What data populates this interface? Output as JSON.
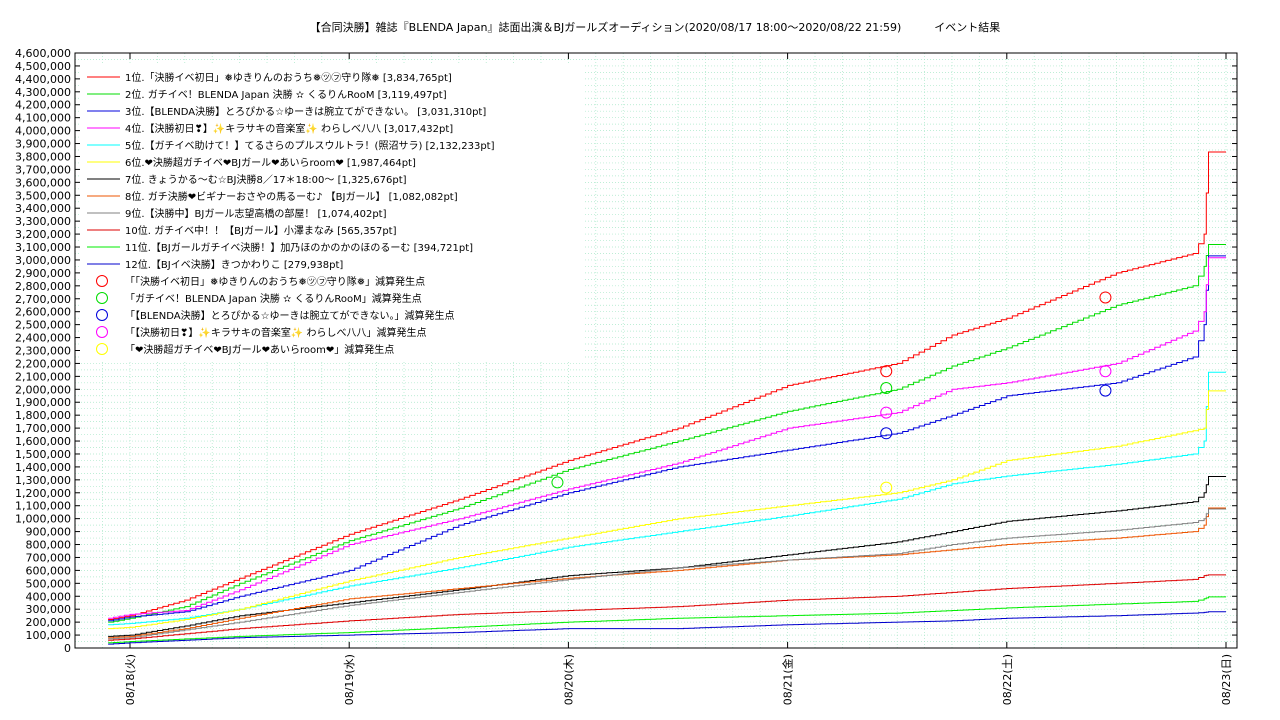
{
  "chart_data": {
    "type": "line",
    "title": "【合同決勝】雑誌『BLENDA Japan』誌面出演＆BJガールズオーディション(2020/08/17 18:00〜2020/08/22 21:59)　　　イベント結果",
    "x_tick_labels": [
      "08/18(火)",
      "08/19(水)",
      "08/20(木)",
      "08/21(金)",
      "08/22(土)",
      "08/23(日)"
    ],
    "x_range_days": [
      0,
      5
    ],
    "ylim": [
      0,
      4600000
    ],
    "y_tick_labels": [
      "0",
      "100,000",
      "200,000",
      "300,000",
      "400,000",
      "500,000",
      "600,000",
      "700,000",
      "800,000",
      "900,000",
      "1,000,000",
      "1,100,000",
      "1,200,000",
      "1,300,000",
      "1,400,000",
      "1,500,000",
      "1,600,000",
      "1,700,000",
      "1,800,000",
      "1,900,000",
      "2,000,000",
      "2,100,000",
      "2,200,000",
      "2,300,000",
      "2,400,000",
      "2,500,000",
      "2,600,000",
      "2,700,000",
      "2,800,000",
      "2,900,000",
      "3,000,000",
      "3,100,000",
      "3,200,000",
      "3,300,000",
      "3,400,000",
      "3,500,000",
      "3,600,000",
      "3,700,000",
      "3,800,000",
      "3,900,000",
      "4,000,000",
      "4,100,000",
      "4,200,000",
      "4,300,000",
      "4,400,000",
      "4,500,000",
      "4,600,000"
    ],
    "y_tick_values": [
      0,
      100000,
      200000,
      300000,
      400000,
      500000,
      600000,
      700000,
      800000,
      900000,
      1000000,
      1100000,
      1200000,
      1300000,
      1400000,
      1500000,
      1600000,
      1700000,
      1800000,
      1900000,
      2000000,
      2100000,
      2200000,
      2300000,
      2400000,
      2500000,
      2600000,
      2700000,
      2800000,
      2900000,
      3000000,
      3100000,
      3200000,
      3300000,
      3400000,
      3500000,
      3600000,
      3700000,
      3800000,
      3900000,
      4000000,
      4100000,
      4200000,
      4300000,
      4400000,
      4500000,
      4600000
    ],
    "grid": true,
    "legend_position": "top-left",
    "series": [
      {
        "name": "1位.「決勝イベ初日」❅ゆきりんのおうち❅㋡㋫守り隊❅ [3,834,765pt]",
        "color": "#ff0000",
        "points": [
          [
            -0.1,
            220000
          ],
          [
            0.0,
            250000
          ],
          [
            0.25,
            370000
          ],
          [
            0.5,
            540000
          ],
          [
            1.0,
            880000
          ],
          [
            1.5,
            1150000
          ],
          [
            2.0,
            1450000
          ],
          [
            2.5,
            1700000
          ],
          [
            3.0,
            2030000
          ],
          [
            3.5,
            2200000
          ],
          [
            3.75,
            2420000
          ],
          [
            4.0,
            2550000
          ],
          [
            4.5,
            2900000
          ],
          [
            4.85,
            3050000
          ],
          [
            4.9,
            3200000
          ],
          [
            4.92,
            3834765
          ],
          [
            5.0,
            3834765
          ]
        ]
      },
      {
        "name": "2位. ガチイベ！BLENDA Japan 決勝 ✫ くるりんRooM [3,119,497pt]",
        "color": "#00dd00",
        "points": [
          [
            -0.1,
            200000
          ],
          [
            0.0,
            230000
          ],
          [
            0.25,
            320000
          ],
          [
            0.5,
            500000
          ],
          [
            1.0,
            830000
          ],
          [
            1.5,
            1080000
          ],
          [
            2.0,
            1380000
          ],
          [
            2.5,
            1600000
          ],
          [
            3.0,
            1830000
          ],
          [
            3.5,
            2000000
          ],
          [
            3.75,
            2180000
          ],
          [
            4.0,
            2320000
          ],
          [
            4.5,
            2650000
          ],
          [
            4.85,
            2800000
          ],
          [
            4.9,
            2950000
          ],
          [
            4.92,
            3119497
          ],
          [
            5.0,
            3119497
          ]
        ]
      },
      {
        "name": "3位.【BLENDA決勝】とろぴかる☆ゆーきは腕立てができない。 [3,031,310pt]",
        "color": "#0000dd",
        "points": [
          [
            -0.1,
            210000
          ],
          [
            0.0,
            240000
          ],
          [
            0.25,
            280000
          ],
          [
            0.5,
            400000
          ],
          [
            1.0,
            600000
          ],
          [
            1.5,
            950000
          ],
          [
            2.0,
            1200000
          ],
          [
            2.5,
            1400000
          ],
          [
            3.0,
            1530000
          ],
          [
            3.5,
            1660000
          ],
          [
            3.75,
            1800000
          ],
          [
            4.0,
            1950000
          ],
          [
            4.5,
            2050000
          ],
          [
            4.85,
            2250000
          ],
          [
            4.9,
            2500000
          ],
          [
            4.92,
            3031310
          ],
          [
            5.0,
            3031310
          ]
        ]
      },
      {
        "name": "4位.【決勝初日❣】✨キラサキの音楽室✨ わらしべ八八 [3,017,432pt]",
        "color": "#ff00ff",
        "points": [
          [
            -0.1,
            230000
          ],
          [
            0.0,
            260000
          ],
          [
            0.25,
            290000
          ],
          [
            0.5,
            450000
          ],
          [
            1.0,
            800000
          ],
          [
            1.5,
            1000000
          ],
          [
            2.0,
            1230000
          ],
          [
            2.5,
            1430000
          ],
          [
            3.0,
            1700000
          ],
          [
            3.5,
            1820000
          ],
          [
            3.75,
            2000000
          ],
          [
            4.0,
            2050000
          ],
          [
            4.5,
            2200000
          ],
          [
            4.85,
            2450000
          ],
          [
            4.9,
            2600000
          ],
          [
            4.92,
            3017432
          ],
          [
            5.0,
            3017432
          ]
        ]
      },
      {
        "name": "5位.【ガチイベ助けて！】てるさらのプルスウルトラ！(照沼サラ) [2,132,233pt]",
        "color": "#00ffff",
        "points": [
          [
            -0.1,
            180000
          ],
          [
            0.0,
            190000
          ],
          [
            0.25,
            230000
          ],
          [
            0.5,
            300000
          ],
          [
            1.0,
            480000
          ],
          [
            1.5,
            620000
          ],
          [
            2.0,
            780000
          ],
          [
            2.5,
            900000
          ],
          [
            3.0,
            1020000
          ],
          [
            3.5,
            1150000
          ],
          [
            3.75,
            1270000
          ],
          [
            4.0,
            1330000
          ],
          [
            4.5,
            1420000
          ],
          [
            4.85,
            1500000
          ],
          [
            4.9,
            1600000
          ],
          [
            4.92,
            2132233
          ],
          [
            5.0,
            2132233
          ]
        ]
      },
      {
        "name": "6位.❤決勝超ガチイベ❤BJガール❤あいらroom❤ [1,987,464pt]",
        "color": "#ffff00",
        "points": [
          [
            -0.1,
            150000
          ],
          [
            0.0,
            160000
          ],
          [
            0.25,
            220000
          ],
          [
            0.5,
            300000
          ],
          [
            1.0,
            520000
          ],
          [
            1.5,
            700000
          ],
          [
            2.0,
            850000
          ],
          [
            2.5,
            1000000
          ],
          [
            3.0,
            1100000
          ],
          [
            3.5,
            1200000
          ],
          [
            3.75,
            1300000
          ],
          [
            4.0,
            1450000
          ],
          [
            4.5,
            1560000
          ],
          [
            4.85,
            1680000
          ],
          [
            4.9,
            1700000
          ],
          [
            4.92,
            1987464
          ],
          [
            5.0,
            1987464
          ]
        ]
      },
      {
        "name": "7位. きょうかる〜む☆BJ決勝8／17＊18:00〜 [1,325,676pt]",
        "color": "#000000",
        "points": [
          [
            -0.1,
            90000
          ],
          [
            0.0,
            100000
          ],
          [
            0.25,
            170000
          ],
          [
            0.5,
            250000
          ],
          [
            1.0,
            350000
          ],
          [
            1.5,
            450000
          ],
          [
            2.0,
            560000
          ],
          [
            2.5,
            620000
          ],
          [
            3.0,
            720000
          ],
          [
            3.5,
            820000
          ],
          [
            3.75,
            900000
          ],
          [
            4.0,
            980000
          ],
          [
            4.5,
            1060000
          ],
          [
            4.85,
            1130000
          ],
          [
            4.9,
            1200000
          ],
          [
            4.92,
            1325676
          ],
          [
            5.0,
            1325676
          ]
        ]
      },
      {
        "name": "8位. ガチ決勝❤ビギナーおさやの馬るーむ♪ 【BJガール】 [1,082,082pt]",
        "color": "#ee5500",
        "points": [
          [
            -0.1,
            80000
          ],
          [
            0.0,
            90000
          ],
          [
            0.25,
            150000
          ],
          [
            0.5,
            230000
          ],
          [
            1.0,
            380000
          ],
          [
            1.5,
            460000
          ],
          [
            2.0,
            540000
          ],
          [
            2.5,
            600000
          ],
          [
            3.0,
            680000
          ],
          [
            3.5,
            720000
          ],
          [
            3.75,
            760000
          ],
          [
            4.0,
            800000
          ],
          [
            4.5,
            850000
          ],
          [
            4.85,
            900000
          ],
          [
            4.9,
            950000
          ],
          [
            4.92,
            1082082
          ],
          [
            5.0,
            1082082
          ]
        ]
      },
      {
        "name": "9位.【決勝中】BJガール志望高橋の部屋！ [1,074,402pt]",
        "color": "#808080",
        "points": [
          [
            -0.1,
            70000
          ],
          [
            0.0,
            80000
          ],
          [
            0.25,
            140000
          ],
          [
            0.5,
            200000
          ],
          [
            1.0,
            330000
          ],
          [
            1.5,
            430000
          ],
          [
            2.0,
            530000
          ],
          [
            2.5,
            620000
          ],
          [
            3.0,
            680000
          ],
          [
            3.5,
            730000
          ],
          [
            3.75,
            800000
          ],
          [
            4.0,
            850000
          ],
          [
            4.5,
            910000
          ],
          [
            4.85,
            970000
          ],
          [
            4.9,
            1000000
          ],
          [
            4.92,
            1074402
          ],
          [
            5.0,
            1074402
          ]
        ]
      },
      {
        "name": "10位. ガチイベ中！！【BJガール】小澤まなみ [565,357pt]",
        "color": "#dd0000",
        "points": [
          [
            -0.1,
            60000
          ],
          [
            0.0,
            70000
          ],
          [
            0.25,
            110000
          ],
          [
            0.5,
            150000
          ],
          [
            1.0,
            210000
          ],
          [
            1.5,
            260000
          ],
          [
            2.0,
            290000
          ],
          [
            2.5,
            320000
          ],
          [
            3.0,
            370000
          ],
          [
            3.5,
            400000
          ],
          [
            3.75,
            430000
          ],
          [
            4.0,
            460000
          ],
          [
            4.5,
            500000
          ],
          [
            4.85,
            530000
          ],
          [
            4.9,
            560000
          ],
          [
            4.92,
            565357
          ],
          [
            5.0,
            565357
          ]
        ]
      },
      {
        "name": "11位.【BJガールガチイベ決勝！】加乃ほのかのかのほのるーむ [394,721pt]",
        "color": "#00ee00",
        "points": [
          [
            -0.1,
            40000
          ],
          [
            0.0,
            50000
          ],
          [
            0.25,
            70000
          ],
          [
            0.5,
            90000
          ],
          [
            1.0,
            120000
          ],
          [
            1.5,
            160000
          ],
          [
            2.0,
            200000
          ],
          [
            2.5,
            230000
          ],
          [
            3.0,
            250000
          ],
          [
            3.5,
            270000
          ],
          [
            3.75,
            290000
          ],
          [
            4.0,
            310000
          ],
          [
            4.5,
            340000
          ],
          [
            4.85,
            360000
          ],
          [
            4.9,
            380000
          ],
          [
            4.92,
            394721
          ],
          [
            5.0,
            394721
          ]
        ]
      },
      {
        "name": "12位.【BJイベ決勝】きつかわりこ [279,938pt]",
        "color": "#0000cc",
        "points": [
          [
            -0.1,
            30000
          ],
          [
            0.0,
            40000
          ],
          [
            0.25,
            60000
          ],
          [
            0.5,
            80000
          ],
          [
            1.0,
            100000
          ],
          [
            1.5,
            120000
          ],
          [
            2.0,
            150000
          ],
          [
            2.5,
            150000
          ],
          [
            3.0,
            180000
          ],
          [
            3.5,
            200000
          ],
          [
            3.75,
            210000
          ],
          [
            4.0,
            230000
          ],
          [
            4.5,
            250000
          ],
          [
            4.85,
            270000
          ],
          [
            4.9,
            275000
          ],
          [
            4.92,
            279938
          ],
          [
            5.0,
            279938
          ]
        ]
      }
    ],
    "event_markers": [
      {
        "name": "「「決勝イベ初日」❅ゆきりんのおうち❅㋡㋫守り隊❅」減算発生点",
        "color": "#ff0000",
        "points": [
          [
            3.45,
            2140000
          ],
          [
            4.45,
            2710000
          ]
        ]
      },
      {
        "name": "「ガチイベ！BLENDA Japan 決勝 ✫ くるりんRooM」減算発生点",
        "color": "#00dd00",
        "points": [
          [
            1.95,
            1280000
          ],
          [
            3.45,
            2010000
          ]
        ]
      },
      {
        "name": "「【BLENDA決勝】とろぴかる☆ゆーきは腕立てができない。」減算発生点",
        "color": "#0000dd",
        "points": [
          [
            3.45,
            1660000
          ],
          [
            4.45,
            1990000
          ]
        ]
      },
      {
        "name": "「【決勝初日❣】✨キラサキの音楽室✨ わらしべ八八」減算発生点",
        "color": "#ff00ff",
        "points": [
          [
            3.45,
            1820000
          ],
          [
            4.45,
            2140000
          ]
        ]
      },
      {
        "name": "「❤決勝超ガチイベ❤BJガール❤あいらroom❤」減算発生点",
        "color": "#ffff00",
        "points": [
          [
            3.45,
            1240000
          ]
        ]
      }
    ]
  }
}
